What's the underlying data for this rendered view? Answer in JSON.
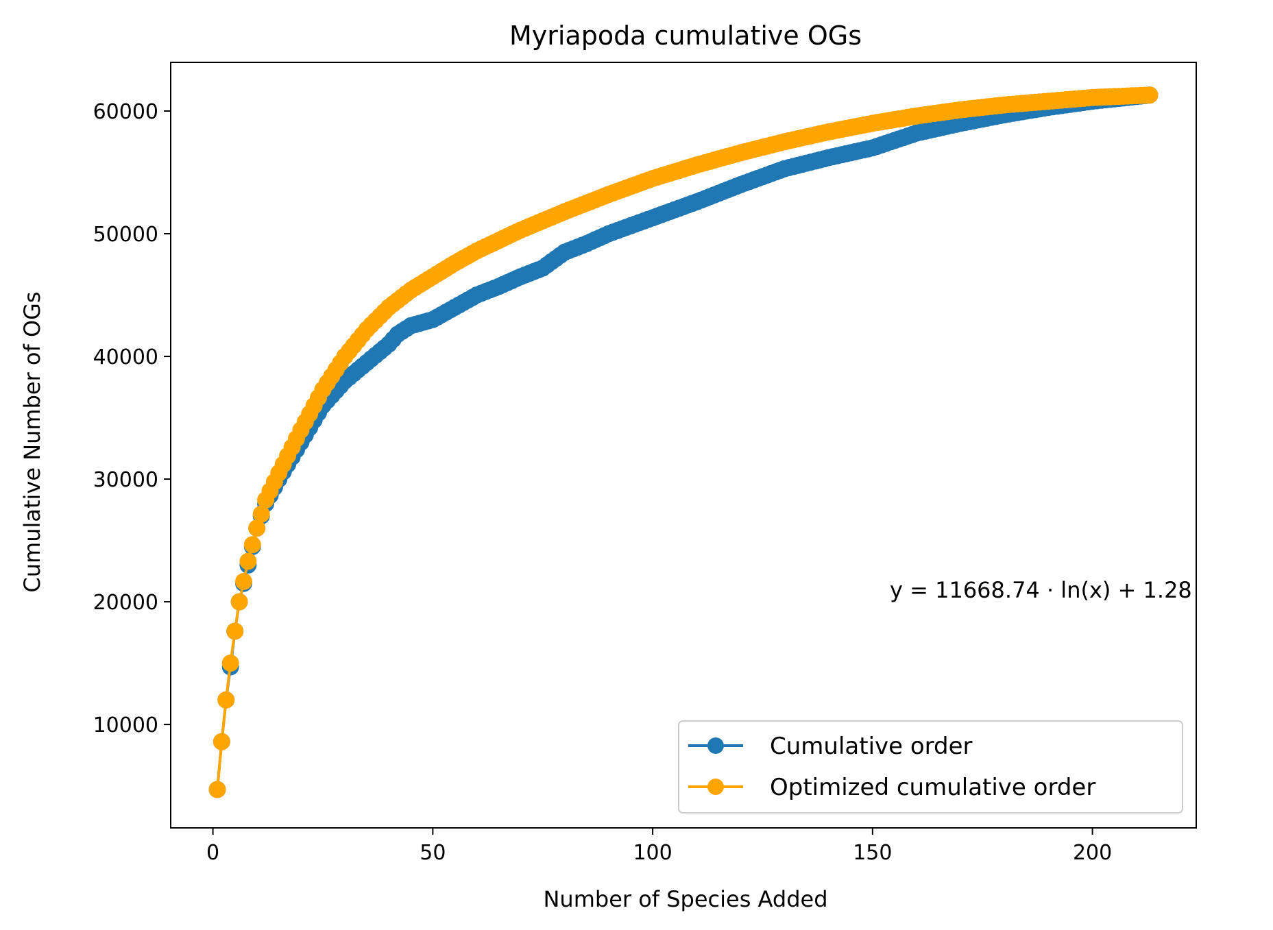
{
  "chart_data": {
    "type": "line",
    "title": "Myriapoda cumulative OGs",
    "xlabel": "Number of Species Added",
    "ylabel": "Cumulative Number of OGs",
    "xlim": [
      -9.6,
      223.6
    ],
    "ylim": [
      1570,
      63967
    ],
    "xticks": [
      0,
      50,
      100,
      150,
      200
    ],
    "yticks": [
      10000,
      20000,
      30000,
      40000,
      50000,
      60000
    ],
    "xtick_labels": [
      "0",
      "50",
      "100",
      "150",
      "200"
    ],
    "ytick_labels": [
      "10000",
      "20000",
      "30000",
      "40000",
      "50000",
      "60000"
    ],
    "grid": false,
    "legend_position": "lower-right",
    "annotation": "y = 11668.74 · ln(x) + 1.28",
    "n_points": 213,
    "series": [
      {
        "name": "Cumulative order",
        "color": "#1f77b4",
        "marker": "circle",
        "x": [
          1,
          2,
          3,
          4,
          5,
          6,
          8,
          10,
          12,
          15,
          20,
          25,
          30,
          35,
          40,
          42,
          45,
          50,
          55,
          60,
          65,
          70,
          75,
          80,
          85,
          90,
          100,
          110,
          120,
          130,
          140,
          150,
          160,
          170,
          180,
          190,
          200,
          213
        ],
        "y": [
          4700,
          8600,
          12000,
          14700,
          17600,
          20000,
          23000,
          26000,
          28000,
          30000,
          33000,
          36000,
          38000,
          39500,
          41000,
          41800,
          42500,
          43000,
          44000,
          45000,
          45700,
          46500,
          47200,
          48500,
          49200,
          50000,
          51300,
          52600,
          54000,
          55300,
          56200,
          57000,
          58200,
          59000,
          59700,
          60300,
          60800,
          61300
        ]
      },
      {
        "name": "Optimized cumulative order",
        "color": "#ffa500",
        "marker": "circle",
        "x": [
          1,
          2,
          3,
          4,
          5,
          6,
          8,
          10,
          12,
          15,
          20,
          25,
          30,
          35,
          40,
          45,
          50,
          55,
          60,
          70,
          80,
          90,
          100,
          110,
          120,
          130,
          140,
          150,
          160,
          170,
          180,
          190,
          200,
          213
        ],
        "y": [
          4700,
          8600,
          12000,
          15000,
          17600,
          20000,
          23300,
          26000,
          28300,
          30500,
          34000,
          37300,
          40000,
          42200,
          44000,
          45400,
          46500,
          47600,
          48600,
          50300,
          51800,
          53200,
          54500,
          55600,
          56600,
          57500,
          58300,
          59000,
          59600,
          60100,
          60500,
          60800,
          61100,
          61300
        ]
      }
    ]
  }
}
